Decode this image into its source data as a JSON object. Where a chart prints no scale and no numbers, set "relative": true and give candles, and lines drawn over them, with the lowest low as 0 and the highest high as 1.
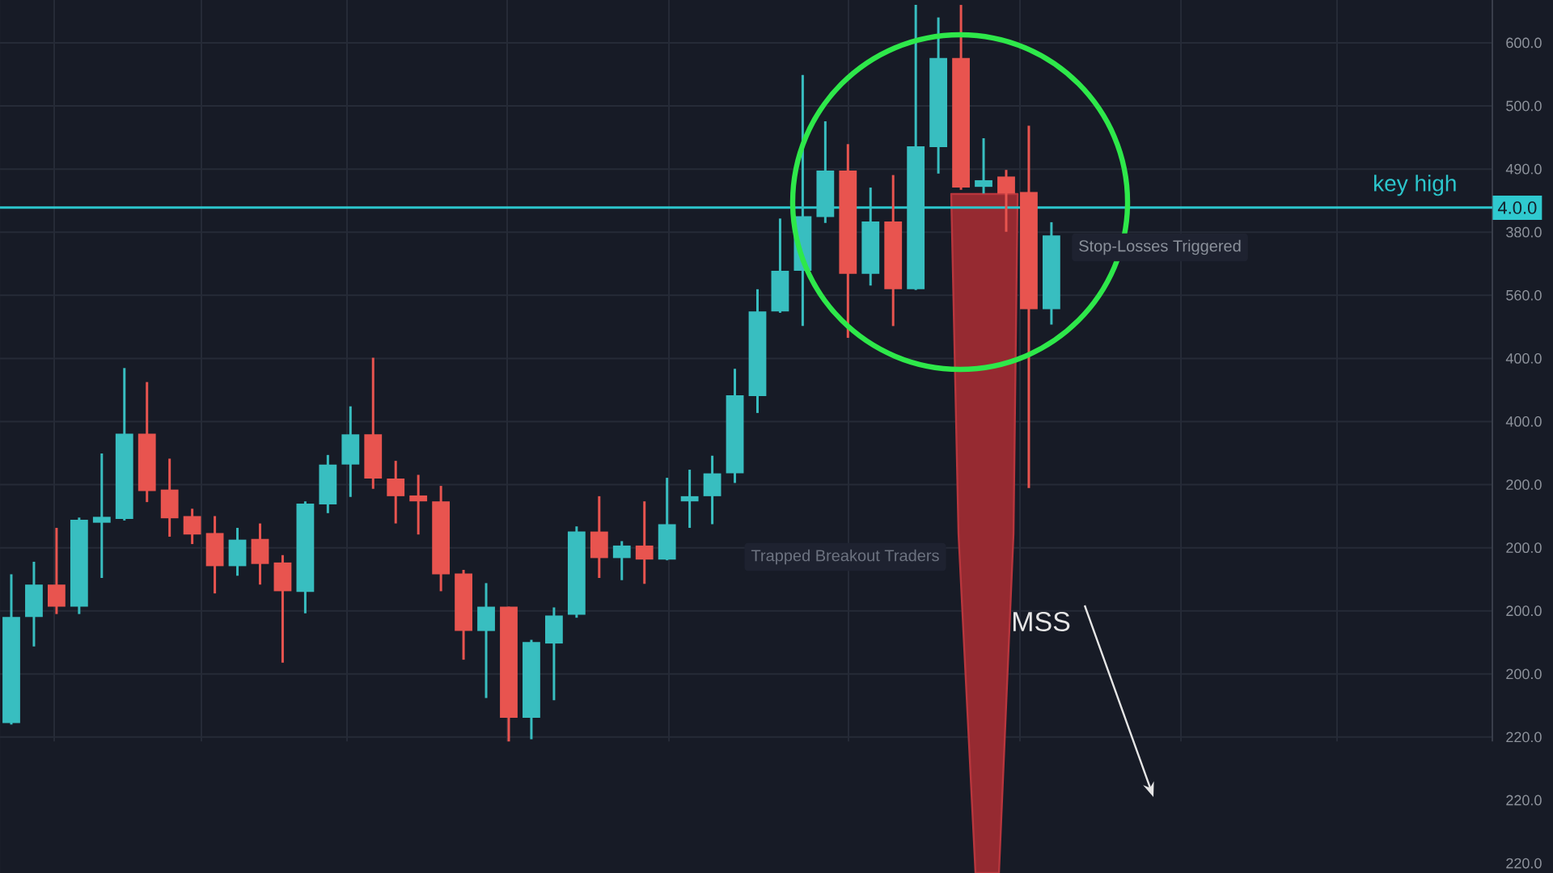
{
  "chart_data": {
    "type": "candlestick",
    "relative": true,
    "categories": [
      null,
      null,
      null,
      null,
      null,
      null,
      null,
      null,
      null,
      null,
      null,
      null,
      null,
      null,
      null,
      null,
      null,
      null,
      null,
      null,
      null,
      null,
      null,
      null,
      null,
      null,
      null,
      null,
      null,
      null,
      null,
      null,
      null,
      null,
      null,
      null,
      null,
      null,
      null,
      null,
      null,
      null,
      null,
      null,
      null,
      null,
      null,
      null,
      null,
      null,
      null,
      null,
      null,
      null,
      null,
      null,
      null,
      null,
      null,
      null,
      null,
      null,
      null,
      null,
      null,
      null
    ],
    "ohlc": [
      [
        0.025,
        0.227,
        0.023,
        0.169
      ],
      [
        0.169,
        0.244,
        0.129,
        0.213
      ],
      [
        0.213,
        0.29,
        0.173,
        0.183
      ],
      [
        0.183,
        0.304,
        0.173,
        0.301
      ],
      [
        0.297,
        0.391,
        0.222,
        0.305
      ],
      [
        0.302,
        0.507,
        0.3,
        0.418
      ],
      [
        0.418,
        0.488,
        0.325,
        0.34
      ],
      [
        0.342,
        0.384,
        0.278,
        0.303
      ],
      [
        0.306,
        0.316,
        0.268,
        0.281
      ],
      [
        0.283,
        0.306,
        0.201,
        0.238
      ],
      [
        0.238,
        0.29,
        0.225,
        0.274
      ],
      [
        0.275,
        0.296,
        0.213,
        0.241
      ],
      [
        0.243,
        0.253,
        0.107,
        0.204
      ],
      [
        0.203,
        0.326,
        0.174,
        0.323
      ],
      [
        0.322,
        0.389,
        0.31,
        0.376
      ],
      [
        0.376,
        0.455,
        0.332,
        0.417
      ],
      [
        0.417,
        0.521,
        0.343,
        0.357
      ],
      [
        0.357,
        0.381,
        0.296,
        0.333
      ],
      [
        0.334,
        0.362,
        0.281,
        0.326
      ],
      [
        0.326,
        0.347,
        0.204,
        0.227
      ],
      [
        0.228,
        0.233,
        0.111,
        0.15
      ],
      [
        0.15,
        0.215,
        0.059,
        0.183
      ],
      [
        0.183,
        0.183,
        0,
        0.032
      ],
      [
        0.032,
        0.138,
        0.003,
        0.135
      ],
      [
        0.133,
        0.182,
        0.056,
        0.171
      ],
      [
        0.172,
        0.292,
        0.168,
        0.285
      ],
      [
        0.285,
        0.333,
        0.222,
        0.249
      ],
      [
        0.249,
        0.272,
        0.219,
        0.266
      ],
      [
        0.266,
        0.326,
        0.214,
        0.247
      ],
      [
        0.247,
        0.358,
        0.246,
        0.295
      ],
      [
        0.326,
        0.369,
        0.29,
        0.333
      ],
      [
        0.333,
        0.388,
        0.295,
        0.364
      ],
      [
        0.364,
        0.506,
        0.351,
        0.47
      ],
      [
        0.469,
        0.614,
        0.446,
        0.584
      ],
      [
        0.584,
        0.71,
        0.582,
        0.639
      ],
      [
        0.639,
        0.905,
        0.564,
        0.713
      ],
      [
        0.712,
        0.842,
        0.704,
        0.775
      ],
      [
        0.775,
        0.811,
        0.548,
        0.635
      ],
      [
        0.635,
        0.752,
        0.619,
        0.706
      ],
      [
        0.706,
        0.769,
        0.564,
        0.614
      ],
      [
        0.614,
        1,
        0.613,
        0.808
      ],
      [
        0.807,
        0.983,
        0.771,
        0.928
      ],
      [
        0.928,
        1,
        0.749,
        0.752
      ],
      [
        0.753,
        0.819,
        0.744,
        0.762
      ],
      [
        0.767,
        0.776,
        0.692,
        0.744
      ],
      [
        0.746,
        0.836,
        0.344,
        0.587
      ],
      [
        0.587,
        0.705,
        0.566,
        0.687
      ],
      null,
      null,
      null,
      null,
      null,
      null,
      null,
      null,
      null,
      null,
      null,
      null,
      null,
      null,
      null,
      null,
      null,
      null,
      null
    ],
    "colors": [
      "#38bec0",
      "#38bec0",
      "#e8544f",
      "#38bec0",
      "#38bec0",
      "#38bec0",
      "#e8544f",
      "#e8544f",
      "#e8544f",
      "#e8544f",
      "#38bec0",
      "#e8544f",
      "#e8544f",
      "#38bec0",
      "#38bec0",
      "#38bec0",
      "#e8544f",
      "#e8544f",
      "#e8544f",
      "#e8544f",
      "#e8544f",
      "#38bec0",
      "#e8544f",
      "#38bec0",
      "#38bec0",
      "#38bec0",
      "#e8544f",
      "#38bec0",
      "#e8544f",
      "#38bec0",
      "#38bec0",
      "#38bec0",
      "#38bec0",
      "#38bec0",
      "#38bec0",
      "#38bec0",
      "#38bec0",
      "#e8544f",
      "#38bec0",
      "#e8544f",
      "#38bec0",
      "#38bec0",
      "#e8544f",
      "#38bec0",
      "#e8544f",
      "#e8544f",
      "#38bec0",
      null,
      null,
      null,
      null,
      null,
      null,
      null,
      null,
      null,
      null,
      null,
      null,
      null,
      null,
      null,
      null,
      null,
      null,
      null
    ],
    "grid": true,
    "ref_lines": [
      {
        "axis": "y",
        "value": 0.725,
        "label": "key high",
        "color": "#2cc6cc"
      }
    ],
    "annotations": [
      "Trapped Breakout Traders",
      "Stop-Losses Triggered",
      "MSS",
      "4.0.0",
      "600.0",
      "500.0",
      "490.0",
      "380.0",
      "560.0",
      "400.0",
      "400.0",
      "200.0",
      "200.0",
      "200.0",
      "200.0",
      "220.0",
      "220.0",
      "220.0"
    ]
  }
}
